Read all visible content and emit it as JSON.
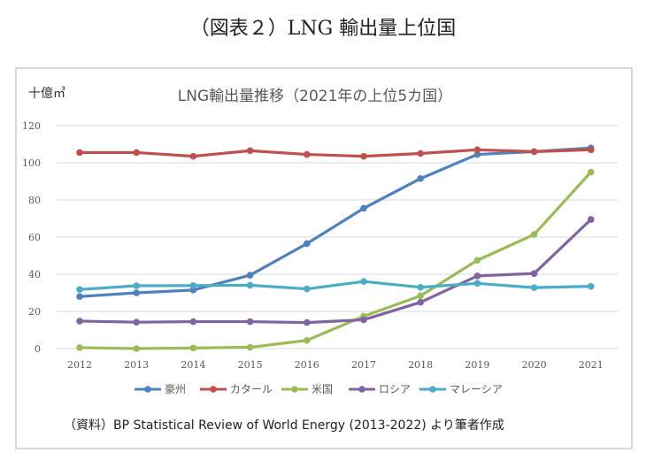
{
  "figure_title": "（図表２）LNG 輸出量上位国",
  "source_note": "（資料）BP Statistical Review of World Energy (2013-2022) より筆者作成",
  "chart_data": {
    "type": "line",
    "title": "LNG輸出量推移（2021年の上位5カ国）",
    "unit_label": "十億㎥",
    "xlabel": "",
    "ylabel": "",
    "x": [
      "2012",
      "2013",
      "2014",
      "2015",
      "2016",
      "2017",
      "2018",
      "2019",
      "2020",
      "2021"
    ],
    "ylim": [
      0,
      120
    ],
    "yticks": [
      0,
      20,
      40,
      60,
      80,
      100,
      120
    ],
    "grid": "horizontal",
    "legend": "bottom",
    "series": [
      {
        "name": "豪州",
        "color": "#4f81bd",
        "values": [
          28,
          30,
          31.5,
          39.5,
          56.5,
          75.5,
          91.5,
          104.5,
          106,
          108
        ]
      },
      {
        "name": "カタール",
        "color": "#c0504d",
        "values": [
          105.5,
          105.5,
          103.5,
          106.5,
          104.5,
          103.5,
          105,
          107,
          106,
          107
        ]
      },
      {
        "name": "米国",
        "color": "#9bbb59",
        "values": [
          0.5,
          0,
          0.3,
          0.7,
          4.4,
          17.4,
          28.4,
          47.5,
          61.4,
          95
        ]
      },
      {
        "name": "ロシア",
        "color": "#8064a2",
        "values": [
          14.8,
          14.2,
          14.5,
          14.5,
          14,
          15.5,
          24.9,
          39.1,
          40.4,
          69.5
        ]
      },
      {
        "name": "マレーシア",
        "color": "#4bacc6",
        "values": [
          31.8,
          33.8,
          33.9,
          34.1,
          32.1,
          36.1,
          33,
          35.1,
          32.8,
          33.5
        ]
      }
    ]
  }
}
